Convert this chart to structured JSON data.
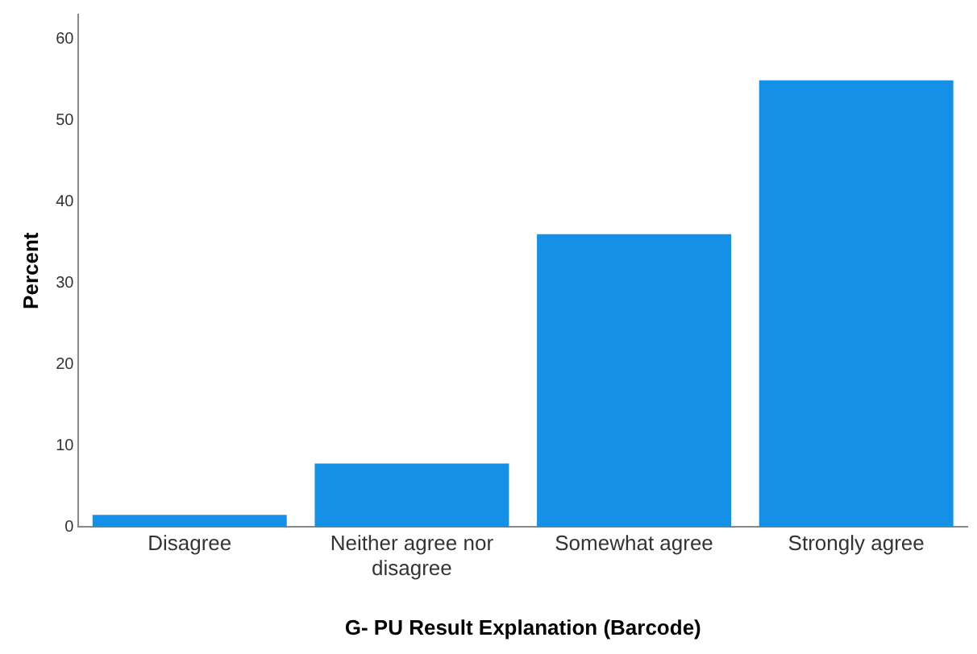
{
  "chart_data": {
    "type": "bar",
    "xlabel": "G- PU Result Explanation (Barcode)",
    "ylabel": "Percent",
    "categories": [
      "Disagree",
      "Neither agree nor disagree",
      "Somewhat agree",
      "Strongly agree"
    ],
    "values": [
      1.5,
      7.8,
      36.0,
      54.9
    ],
    "color": "#1490e6",
    "ylim": [
      0,
      63
    ],
    "yticks": [
      0,
      10,
      20,
      30,
      40,
      50,
      60
    ],
    "grid": false,
    "legend": false
  }
}
